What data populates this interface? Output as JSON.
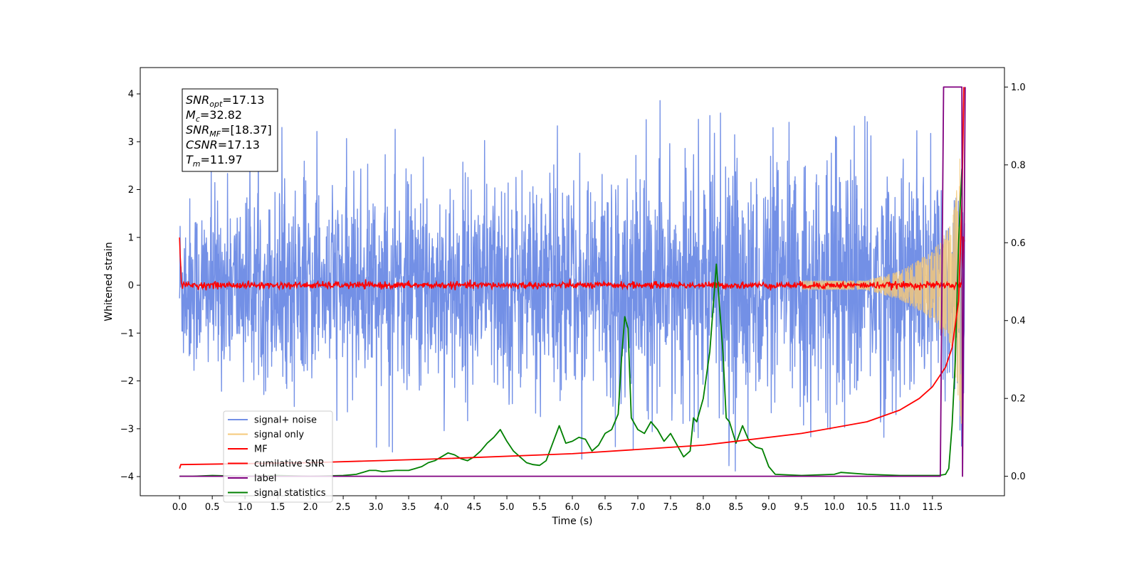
{
  "chart_data": {
    "type": "line",
    "title": "",
    "xlabel": "Time (s)",
    "ylabel": "Whitened strain",
    "xlim": [
      -0.6,
      12.6
    ],
    "ylim": [
      -4.4,
      4.55
    ],
    "y2lim": [
      -0.05,
      1.05
    ],
    "xticks": [
      "0.0",
      "0.5",
      "1.0",
      "1.5",
      "2.0",
      "2.5",
      "3.0",
      "3.5",
      "4.0",
      "4.5",
      "5.0",
      "5.5",
      "6.0",
      "6.5",
      "7.0",
      "7.5",
      "8.0",
      "8.5",
      "9.0",
      "9.5",
      "10.0",
      "10.5",
      "11.0",
      "11.5"
    ],
    "yticks": [
      "4",
      "3",
      "2",
      "1",
      "0",
      "−1",
      "−2",
      "−3",
      "−4"
    ],
    "y2ticks": [
      "1.0",
      "0.8",
      "0.6",
      "0.4",
      "0.2",
      "0.0"
    ],
    "grid": false,
    "legend_position": "bottom-left",
    "info_box": [
      {
        "sym": "SNR",
        "sub": "opt",
        "val": "=17.13"
      },
      {
        "sym": "M",
        "sub": "c",
        "val": "=32.82"
      },
      {
        "sym": "SNR",
        "sub": "MF",
        "val": "=[18.37]"
      },
      {
        "sym": "CSNR",
        "sub": "",
        "val": "=17.13"
      },
      {
        "sym": "T",
        "sub": "m",
        "val": "=11.97"
      }
    ],
    "series": [
      {
        "name": "signal+ noise",
        "color": "#7390e6",
        "axis": "left",
        "kind": "noise",
        "amplitude_envelope": [
          [
            0.0,
            2.3
          ],
          [
            6.0,
            3.0
          ],
          [
            11.9,
            3.3
          ]
        ]
      },
      {
        "name": "signal only",
        "color": "#f5c97a",
        "axis": "left",
        "kind": "chirp",
        "x": [
          0.0,
          10.5,
          11.0,
          11.5,
          11.8,
          11.95
        ],
        "amplitude": [
          0.02,
          0.1,
          0.3,
          0.7,
          1.3,
          3.0
        ]
      },
      {
        "name": "MF",
        "color": "#ff0000",
        "axis": "left",
        "kind": "noise",
        "x": [
          0.0,
          0.03,
          11.95,
          11.97,
          12.0
        ],
        "y": [
          1.0,
          0.0,
          0.0,
          1.0,
          0.95
        ]
      },
      {
        "name": "cumilative SNR",
        "color": "#ff0000",
        "axis": "right",
        "x": [
          0.0,
          0.02,
          2.0,
          4.0,
          6.0,
          8.0,
          9.5,
          10.5,
          11.0,
          11.3,
          11.5,
          11.7,
          11.8,
          11.9,
          11.95,
          11.98
        ],
        "y": [
          0.02,
          0.03,
          0.035,
          0.045,
          0.058,
          0.08,
          0.11,
          0.14,
          0.17,
          0.2,
          0.23,
          0.28,
          0.33,
          0.45,
          0.7,
          1.0
        ]
      },
      {
        "name": "label",
        "color": "#800080",
        "axis": "right",
        "x": [
          0.0,
          11.62,
          11.67,
          11.95,
          11.96,
          12.0
        ],
        "y": [
          0.0,
          0.0,
          1.0,
          1.0,
          0.0,
          1.0
        ]
      },
      {
        "name": "signal statistics",
        "color": "#008000",
        "axis": "right",
        "x": [
          0.0,
          0.2,
          0.5,
          1.0,
          1.5,
          2.0,
          2.5,
          2.7,
          2.9,
          3.0,
          3.1,
          3.3,
          3.5,
          3.6,
          3.7,
          3.8,
          3.9,
          4.0,
          4.1,
          4.2,
          4.3,
          4.4,
          4.5,
          4.6,
          4.7,
          4.8,
          4.9,
          5.0,
          5.1,
          5.2,
          5.3,
          5.4,
          5.5,
          5.6,
          5.7,
          5.8,
          5.9,
          6.0,
          6.1,
          6.2,
          6.3,
          6.4,
          6.5,
          6.6,
          6.7,
          6.75,
          6.8,
          6.85,
          6.9,
          7.0,
          7.1,
          7.2,
          7.3,
          7.4,
          7.5,
          7.6,
          7.7,
          7.8,
          7.85,
          7.9,
          8.0,
          8.1,
          8.2,
          8.3,
          8.35,
          8.4,
          8.5,
          8.6,
          8.7,
          8.8,
          8.9,
          9.0,
          9.1,
          9.5,
          10.0,
          10.1,
          10.5,
          11.0,
          11.6,
          11.7,
          11.75,
          11.8,
          11.85,
          11.9,
          11.95
        ],
        "y": [
          0.0,
          0.0,
          0.002,
          0.0,
          0.002,
          0.0,
          0.002,
          0.005,
          0.015,
          0.015,
          0.012,
          0.015,
          0.015,
          0.02,
          0.025,
          0.035,
          0.04,
          0.05,
          0.06,
          0.055,
          0.045,
          0.04,
          0.05,
          0.065,
          0.085,
          0.1,
          0.12,
          0.09,
          0.065,
          0.05,
          0.035,
          0.03,
          0.028,
          0.04,
          0.085,
          0.13,
          0.085,
          0.09,
          0.1,
          0.095,
          0.065,
          0.08,
          0.11,
          0.12,
          0.16,
          0.3,
          0.41,
          0.38,
          0.15,
          0.12,
          0.11,
          0.14,
          0.12,
          0.09,
          0.11,
          0.08,
          0.05,
          0.065,
          0.15,
          0.14,
          0.2,
          0.32,
          0.545,
          0.32,
          0.15,
          0.14,
          0.085,
          0.13,
          0.09,
          0.075,
          0.07,
          0.025,
          0.005,
          0.002,
          0.005,
          0.01,
          0.005,
          0.002,
          0.002,
          0.005,
          0.02,
          0.13,
          0.3,
          0.6,
          0.79
        ]
      }
    ]
  }
}
